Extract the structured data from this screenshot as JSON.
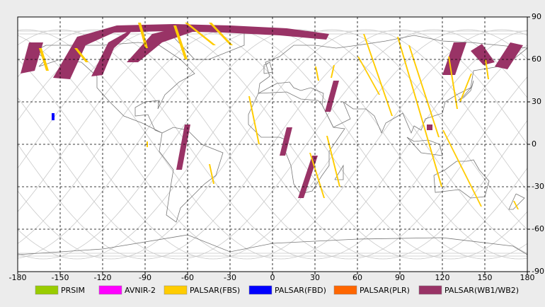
{
  "chart_data": {
    "type": "map",
    "xlim": [
      -180,
      180
    ],
    "ylim": [
      -90,
      90
    ],
    "xticks": [
      -180,
      -150,
      -120,
      -90,
      -60,
      -30,
      0,
      30,
      60,
      90,
      120,
      150,
      180
    ],
    "yticks": [
      -90,
      -60,
      -30,
      0,
      30,
      60,
      90
    ],
    "grid": true,
    "legend": [
      {
        "name": "PRSIM",
        "color": "#99cc00"
      },
      {
        "name": "AVNIR-2",
        "color": "#ff00ff"
      },
      {
        "name": "PALSAR(FBS)",
        "color": "#ffcc00"
      },
      {
        "name": "PALSAR(FBD)",
        "color": "#0000ff"
      },
      {
        "name": "PALSAR(PLR)",
        "color": "#ff6600"
      },
      {
        "name": "PALSAR(WB1/WB2)",
        "color": "#993366"
      }
    ],
    "swaths": [
      {
        "kind": 5,
        "lon": [
          -178,
          -172,
          -162,
          -168
        ],
        "lat": [
          50,
          72,
          72,
          52
        ]
      },
      {
        "kind": 5,
        "lon": [
          -155,
          -138,
          -110,
          -70,
          -30,
          10,
          40,
          38,
          5,
          -35,
          -75,
          -112,
          -132,
          -143
        ],
        "lat": [
          47,
          76,
          84,
          85,
          84,
          82,
          78,
          74,
          77,
          79,
          80,
          79,
          70,
          46
        ]
      },
      {
        "kind": 5,
        "lon": [
          -128,
          -116,
          -98,
          -102,
          -112,
          -120
        ],
        "lat": [
          48,
          72,
          82,
          77,
          68,
          49
        ]
      },
      {
        "kind": 5,
        "lon": [
          -103,
          -85,
          -60,
          -55,
          -78,
          -95
        ],
        "lat": [
          58,
          78,
          84,
          80,
          72,
          58
        ]
      },
      {
        "kind": 5,
        "lon": [
          -62,
          -58,
          -64,
          -68
        ],
        "lat": [
          14,
          14,
          -18,
          -18
        ]
      },
      {
        "kind": 5,
        "lon": [
          10,
          14,
          9,
          5
        ],
        "lat": [
          12,
          12,
          -8,
          -8
        ]
      },
      {
        "kind": 5,
        "lon": [
          28,
          32,
          22,
          18
        ],
        "lat": [
          -8,
          -8,
          -38,
          -38
        ]
      },
      {
        "kind": 5,
        "lon": [
          43,
          47,
          41,
          37
        ],
        "lat": [
          45,
          45,
          23,
          23
        ]
      },
      {
        "kind": 5,
        "lon": [
          109,
          113,
          113,
          109
        ],
        "lat": [
          14,
          14,
          10,
          10
        ]
      },
      {
        "kind": 5,
        "lon": [
          120,
          128,
          137,
          129
        ],
        "lat": [
          49,
          72,
          72,
          49
        ]
      },
      {
        "kind": 5,
        "lon": [
          140,
          148,
          157,
          149
        ],
        "lat": [
          66,
          71,
          58,
          56
        ]
      },
      {
        "kind": 5,
        "lon": [
          157,
          168,
          177,
          166
        ],
        "lat": [
          55,
          72,
          70,
          53
        ]
      },
      {
        "kind": 2,
        "lon": [
          -165,
          -163,
          -158,
          -160
        ],
        "lat": [
          68,
          68,
          52,
          52
        ]
      },
      {
        "kind": 2,
        "lon": [
          -140,
          -138,
          -130,
          -132
        ],
        "lat": [
          68,
          68,
          58,
          58
        ]
      },
      {
        "kind": 2,
        "lon": [
          -95,
          -93,
          -88,
          -90
        ],
        "lat": [
          86,
          86,
          68,
          68
        ]
      },
      {
        "kind": 2,
        "lon": [
          -62,
          -60,
          -40,
          -42
        ],
        "lat": [
          86,
          86,
          70,
          70
        ]
      },
      {
        "kind": 2,
        "lon": [
          -45,
          -43,
          -28,
          -30
        ],
        "lat": [
          86,
          86,
          70,
          70
        ]
      },
      {
        "kind": 2,
        "lon": [
          -70,
          -68,
          -60,
          -62
        ],
        "lat": [
          84,
          84,
          60,
          60
        ]
      },
      {
        "kind": 2,
        "lon": [
          -17,
          -16,
          -9,
          -10
        ],
        "lat": [
          34,
          34,
          0,
          0
        ]
      },
      {
        "kind": 2,
        "lon": [
          -45,
          -44,
          -41,
          -42
        ],
        "lat": [
          -14,
          -14,
          -28,
          -28
        ]
      },
      {
        "kind": 2,
        "lon": [
          -89,
          -88,
          -88,
          -89
        ],
        "lat": [
          2,
          2,
          -2,
          -2
        ]
      },
      {
        "kind": 2,
        "lon": [
          26,
          27,
          37,
          36
        ],
        "lat": [
          -6,
          -6,
          -38,
          -38
        ]
      },
      {
        "kind": 2,
        "lon": [
          30,
          31,
          33,
          32
        ],
        "lat": [
          55,
          55,
          45,
          45
        ]
      },
      {
        "kind": 2,
        "lon": [
          38,
          39,
          48,
          47
        ],
        "lat": [
          6,
          6,
          -30,
          -30
        ]
      },
      {
        "kind": 2,
        "lon": [
          43,
          44,
          42,
          41
        ],
        "lat": [
          56,
          56,
          47,
          47
        ]
      },
      {
        "kind": 2,
        "lon": [
          64,
          65,
          85,
          84
        ],
        "lat": [
          78,
          78,
          20,
          20
        ]
      },
      {
        "kind": 2,
        "lon": [
          88,
          89,
          120,
          119
        ],
        "lat": [
          76,
          76,
          -30,
          -30
        ]
      },
      {
        "kind": 2,
        "lon": [
          60,
          61,
          76,
          75
        ],
        "lat": [
          62,
          62,
          35,
          35
        ]
      },
      {
        "kind": 2,
        "lon": [
          96,
          97,
          118,
          117
        ],
        "lat": [
          70,
          70,
          5,
          5
        ]
      },
      {
        "kind": 2,
        "lon": [
          124,
          125,
          131,
          130
        ],
        "lat": [
          62,
          62,
          25,
          25
        ]
      },
      {
        "kind": 2,
        "lon": [
          120,
          121,
          148,
          147
        ],
        "lat": [
          10,
          10,
          -44,
          -44
        ]
      },
      {
        "kind": 2,
        "lon": [
          140,
          141,
          133,
          132
        ],
        "lat": [
          50,
          50,
          30,
          30
        ]
      },
      {
        "kind": 2,
        "lon": [
          150,
          151,
          153,
          152
        ],
        "lat": [
          60,
          60,
          46,
          46
        ]
      },
      {
        "kind": 2,
        "lon": [
          170,
          171,
          174,
          173
        ],
        "lat": [
          -40,
          -40,
          -46,
          -46
        ]
      },
      {
        "kind": 3,
        "lon": [
          -156,
          -154,
          -154,
          -156
        ],
        "lat": [
          22,
          22,
          17,
          17
        ]
      }
    ]
  }
}
